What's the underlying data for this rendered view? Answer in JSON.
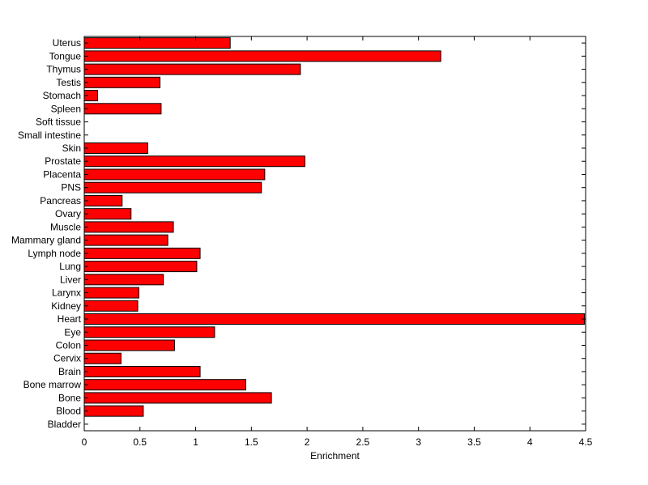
{
  "chart_data": {
    "type": "bar",
    "orientation": "horizontal",
    "title": "",
    "xlabel": "Enrichment",
    "ylabel": "",
    "xlim": [
      0,
      4.5
    ],
    "xticks": [
      "0",
      "0.5",
      "1",
      "1.5",
      "2",
      "2.5",
      "3",
      "3.5",
      "4",
      "4.5"
    ],
    "grid": false,
    "bar_color": "#ff0000",
    "categories": [
      "Bladder",
      "Blood",
      "Bone",
      "Bone marrow",
      "Brain",
      "Cervix",
      "Colon",
      "Eye",
      "Heart",
      "Kidney",
      "Larynx",
      "Liver",
      "Lung",
      "Lymph node",
      "Mammary gland",
      "Muscle",
      "Ovary",
      "Pancreas",
      "PNS",
      "Placenta",
      "Prostate",
      "Skin",
      "Small intestine",
      "Soft tissue",
      "Spleen",
      "Stomach",
      "Testis",
      "Thymus",
      "Tongue",
      "Uterus"
    ],
    "values": [
      0,
      0.53,
      1.68,
      1.45,
      1.04,
      0.33,
      0.81,
      1.17,
      4.49,
      0.48,
      0.49,
      0.71,
      1.01,
      1.04,
      0.75,
      0.8,
      0.42,
      0.34,
      1.59,
      1.62,
      1.98,
      0.57,
      0,
      0,
      0.69,
      0.12,
      0.68,
      1.94,
      3.2,
      1.31
    ]
  }
}
